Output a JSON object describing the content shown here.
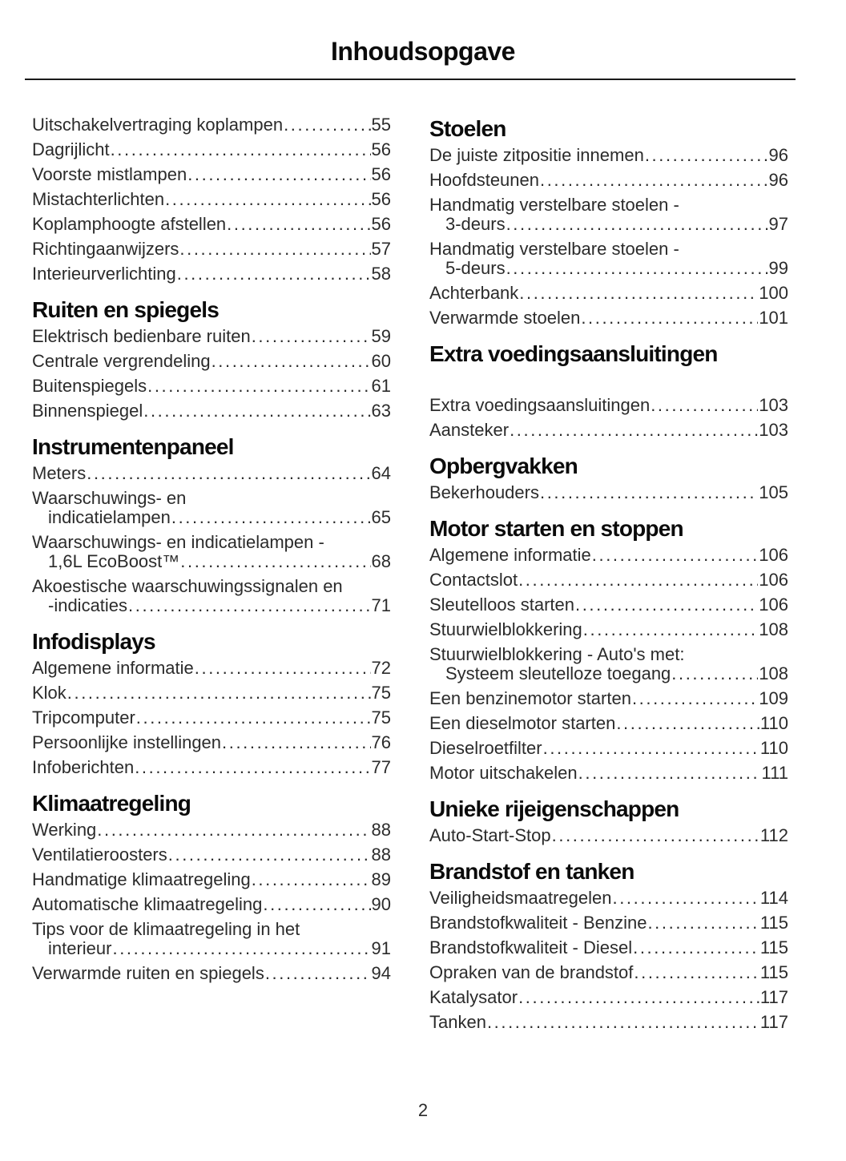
{
  "page": {
    "title": "Inhoudsopgave",
    "page_number": "2"
  },
  "columns": [
    {
      "blocks": [
        {
          "entries": [
            {
              "lines": [
                "Uitschakelvertraging koplampen"
              ],
              "page": "55"
            },
            {
              "lines": [
                "Dagrijlicht"
              ],
              "page": "56"
            },
            {
              "lines": [
                "Voorste mistlampen"
              ],
              "page": "56"
            },
            {
              "lines": [
                "Mistachterlichten"
              ],
              "page": "56"
            },
            {
              "lines": [
                "Koplamphoogte afstellen"
              ],
              "page": "56"
            },
            {
              "lines": [
                "Richtingaanwijzers"
              ],
              "page": "57"
            },
            {
              "lines": [
                "Interieurverlichting"
              ],
              "page": "58"
            }
          ]
        },
        {
          "heading": "Ruiten en spiegels",
          "entries": [
            {
              "lines": [
                "Elektrisch bedienbare ruiten"
              ],
              "page": "59"
            },
            {
              "lines": [
                "Centrale vergrendeling"
              ],
              "page": "60"
            },
            {
              "lines": [
                "Buitenspiegels"
              ],
              "page": "61"
            },
            {
              "lines": [
                "Binnenspiegel"
              ],
              "page": "63"
            }
          ]
        },
        {
          "heading": "Instrumentenpaneel",
          "entries": [
            {
              "lines": [
                "Meters"
              ],
              "page": "64"
            },
            {
              "lines": [
                "Waarschuwings- en",
                "indicatielampen"
              ],
              "page": "65"
            },
            {
              "lines": [
                "Waarschuwings- en indicatielampen -",
                "1,6L EcoBoost™"
              ],
              "page": "68"
            },
            {
              "lines": [
                "Akoestische waarschuwingssignalen en",
                "-indicaties"
              ],
              "page": "71"
            }
          ]
        },
        {
          "heading": "Infodisplays",
          "entries": [
            {
              "lines": [
                "Algemene informatie"
              ],
              "page": "72"
            },
            {
              "lines": [
                "Klok"
              ],
              "page": "75"
            },
            {
              "lines": [
                "Tripcomputer"
              ],
              "page": "75"
            },
            {
              "lines": [
                "Persoonlijke instellingen"
              ],
              "page": "76"
            },
            {
              "lines": [
                "Infoberichten"
              ],
              "page": "77"
            }
          ]
        },
        {
          "heading": "Klimaatregeling",
          "entries": [
            {
              "lines": [
                "Werking"
              ],
              "page": "88"
            },
            {
              "lines": [
                "Ventilatieroosters"
              ],
              "page": "88"
            },
            {
              "lines": [
                "Handmatige klimaatregeling"
              ],
              "page": "89"
            },
            {
              "lines": [
                "Automatische klimaatregeling"
              ],
              "page": "90"
            },
            {
              "lines": [
                "Tips voor de klimaatregeling in het",
                "interieur"
              ],
              "page": "91"
            },
            {
              "lines": [
                "Verwarmde ruiten en spiegels"
              ],
              "page": "94"
            }
          ]
        }
      ]
    },
    {
      "blocks": [
        {
          "heading": "Stoelen",
          "entries": [
            {
              "lines": [
                "De juiste zitpositie innemen"
              ],
              "page": "96"
            },
            {
              "lines": [
                "Hoofdsteunen"
              ],
              "page": "96"
            },
            {
              "lines": [
                "Handmatig verstelbare stoelen -",
                "3-deurs"
              ],
              "page": "97"
            },
            {
              "lines": [
                "Handmatig verstelbare stoelen -",
                "5-deurs"
              ],
              "page": "99"
            },
            {
              "lines": [
                "Achterbank"
              ],
              "page": "100"
            },
            {
              "lines": [
                "Verwarmde stoelen"
              ],
              "page": "101"
            }
          ]
        },
        {
          "heading": "Extra voedingsaansluitingen",
          "gap_after_heading": true,
          "entries": [
            {
              "lines": [
                "Extra voedingsaansluitingen "
              ],
              "page": "103"
            },
            {
              "lines": [
                "Aansteker"
              ],
              "page": "103"
            }
          ]
        },
        {
          "heading": "Opbergvakken",
          "entries": [
            {
              "lines": [
                "Bekerhouders"
              ],
              "page": "105"
            }
          ]
        },
        {
          "heading": "Motor starten en stoppen",
          "entries": [
            {
              "lines": [
                "Algemene informatie"
              ],
              "page": "106"
            },
            {
              "lines": [
                "Contactslot"
              ],
              "page": "106"
            },
            {
              "lines": [
                "Sleutelloos starten"
              ],
              "page": "106"
            },
            {
              "lines": [
                "Stuurwielblokkering"
              ],
              "page": "108"
            },
            {
              "lines": [
                "Stuurwielblokkering - Auto's met:",
                "Systeem sleutelloze toegang"
              ],
              "page": "108"
            },
            {
              "lines": [
                "Een benzinemotor starten"
              ],
              "page": "109"
            },
            {
              "lines": [
                "Een dieselmotor starten"
              ],
              "page": "110"
            },
            {
              "lines": [
                "Dieselroetfilter"
              ],
              "page": "110"
            },
            {
              "lines": [
                "Motor uitschakelen"
              ],
              "page": "111"
            }
          ]
        },
        {
          "heading": "Unieke rijeigenschappen",
          "entries": [
            {
              "lines": [
                "Auto-Start-Stop"
              ],
              "page": "112"
            }
          ]
        },
        {
          "heading": "Brandstof en tanken",
          "entries": [
            {
              "lines": [
                "Veiligheidsmaatregelen"
              ],
              "page": "114"
            },
            {
              "lines": [
                "Brandstofkwaliteit - Benzine"
              ],
              "page": "115"
            },
            {
              "lines": [
                "Brandstofkwaliteit - Diesel"
              ],
              "page": "115"
            },
            {
              "lines": [
                "Opraken van de brandstof"
              ],
              "page": "115"
            },
            {
              "lines": [
                "Katalysator"
              ],
              "page": "117"
            },
            {
              "lines": [
                "Tanken"
              ],
              "page": "117"
            }
          ]
        }
      ]
    }
  ]
}
